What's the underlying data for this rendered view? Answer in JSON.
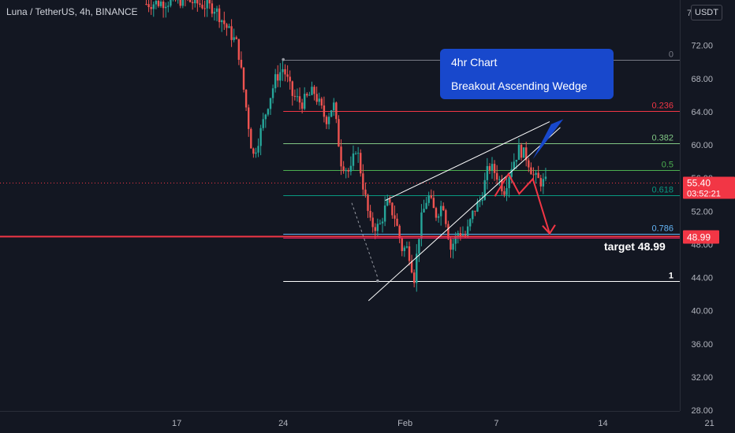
{
  "header": {
    "title": "Luna / TetherUS, 4h, BINANCE",
    "currency_button": "USDT",
    "top_partial_tick": "7"
  },
  "annotation": {
    "line1": "4hr Chart",
    "line2": "Breakout Ascending Wedge",
    "target_label": "target 48.99"
  },
  "price_badges": [
    {
      "price": "55.40",
      "countdown": "03:52:21",
      "color": "#f23645"
    },
    {
      "price": "48.99",
      "color": "#f23645"
    }
  ],
  "colors": {
    "background": "#131722",
    "up": "#26a69a",
    "down": "#ef5350",
    "callout": "#1848cc",
    "target_line": "#f23645",
    "grid_text": "#b2b5be"
  },
  "chart_data": {
    "type": "candlestick",
    "title": "Luna / TetherUS, 4h, BINANCE",
    "y_axis": {
      "min": 28,
      "max": 76,
      "ticks": [
        "72.00",
        "68.00",
        "64.00",
        "60.00",
        "56.00",
        "52.00",
        "48.00",
        "44.00",
        "40.00",
        "36.00",
        "32.00",
        "28.00"
      ],
      "tick_values": [
        72,
        68,
        64,
        60,
        56,
        52,
        48,
        44,
        40,
        36,
        32,
        28
      ],
      "unit": "USDT"
    },
    "x_axis": {
      "ticks": [
        "17",
        "24",
        "Feb",
        "7",
        "14",
        "21"
      ],
      "tick_days": [
        17,
        24,
        32,
        38,
        45,
        52
      ],
      "start_day": 15,
      "end_day": 59
    },
    "fibonacci": [
      {
        "level": "0",
        "price": 70.3,
        "color": "#787b86"
      },
      {
        "level": "0.236",
        "price": 64.1,
        "color": "#f23645"
      },
      {
        "level": "0.382",
        "price": 60.2,
        "color": "#81c784"
      },
      {
        "level": "0.5",
        "price": 57.0,
        "color": "#4caf50"
      },
      {
        "level": "0.618",
        "price": 53.9,
        "color": "#089981"
      },
      {
        "level": "0.786",
        "price": 49.3,
        "color": "#64b5f6"
      },
      {
        "level": "1",
        "price": 43.6,
        "color": "#ffffff"
      }
    ],
    "fib_start_day": 24.0,
    "current_price": 55.4,
    "target_price": 48.99,
    "wedge_upper": [
      [
        30.7,
        53.3
      ],
      [
        41.5,
        62.8
      ]
    ],
    "wedge_lower": [
      [
        29.6,
        41.2
      ],
      [
        42.2,
        62.1
      ]
    ],
    "callout_pointer": [
      [
        40.4,
        58.3
      ],
      [
        41.6,
        62.5
      ],
      [
        42.4,
        63.1
      ]
    ],
    "projection": [
      [
        37.9,
        53.8
      ],
      [
        38.8,
        56.5
      ],
      [
        39.5,
        54.1
      ],
      [
        40.4,
        55.9
      ],
      [
        41.5,
        49.3
      ]
    ],
    "dashed_path": [
      [
        28.5,
        53.0
      ],
      [
        30.2,
        44.0
      ]
    ],
    "anchor_points": [
      [
        24.0,
        70.3
      ],
      [
        30.2,
        43.6
      ]
    ],
    "price_path": [
      [
        15.0,
        77.0
      ],
      [
        17.5,
        77.5
      ],
      [
        19.5,
        76.5
      ],
      [
        21.0,
        72.0
      ],
      [
        21.6,
        64.0
      ],
      [
        22.0,
        58.5
      ],
      [
        22.5,
        61.5
      ],
      [
        23.0,
        65.0
      ],
      [
        23.5,
        68.0
      ],
      [
        24.0,
        69.3
      ],
      [
        24.6,
        66.0
      ],
      [
        25.2,
        65.0
      ],
      [
        26.0,
        66.5
      ],
      [
        26.8,
        63.0
      ],
      [
        27.3,
        65.0
      ],
      [
        27.8,
        58.0
      ],
      [
        28.4,
        56.5
      ],
      [
        28.8,
        60.0
      ],
      [
        29.3,
        54.5
      ],
      [
        29.7,
        50.5
      ],
      [
        30.3,
        50.0
      ],
      [
        30.8,
        53.0
      ],
      [
        31.3,
        51.5
      ],
      [
        31.8,
        47.5
      ],
      [
        32.2,
        47.5
      ],
      [
        32.6,
        44.0
      ],
      [
        33.0,
        50.5
      ],
      [
        33.5,
        54.0
      ],
      [
        34.0,
        51.5
      ],
      [
        34.5,
        53.0
      ],
      [
        35.0,
        47.5
      ],
      [
        35.5,
        49.5
      ],
      [
        36.0,
        49.0
      ],
      [
        36.5,
        52.0
      ],
      [
        37.0,
        53.5
      ],
      [
        37.5,
        57.5
      ],
      [
        38.0,
        56.5
      ],
      [
        38.5,
        54.5
      ],
      [
        39.0,
        57.5
      ],
      [
        39.5,
        59.5
      ],
      [
        40.0,
        58.5
      ],
      [
        40.5,
        56.0
      ],
      [
        41.0,
        55.5
      ],
      [
        41.3,
        55.4
      ]
    ]
  }
}
